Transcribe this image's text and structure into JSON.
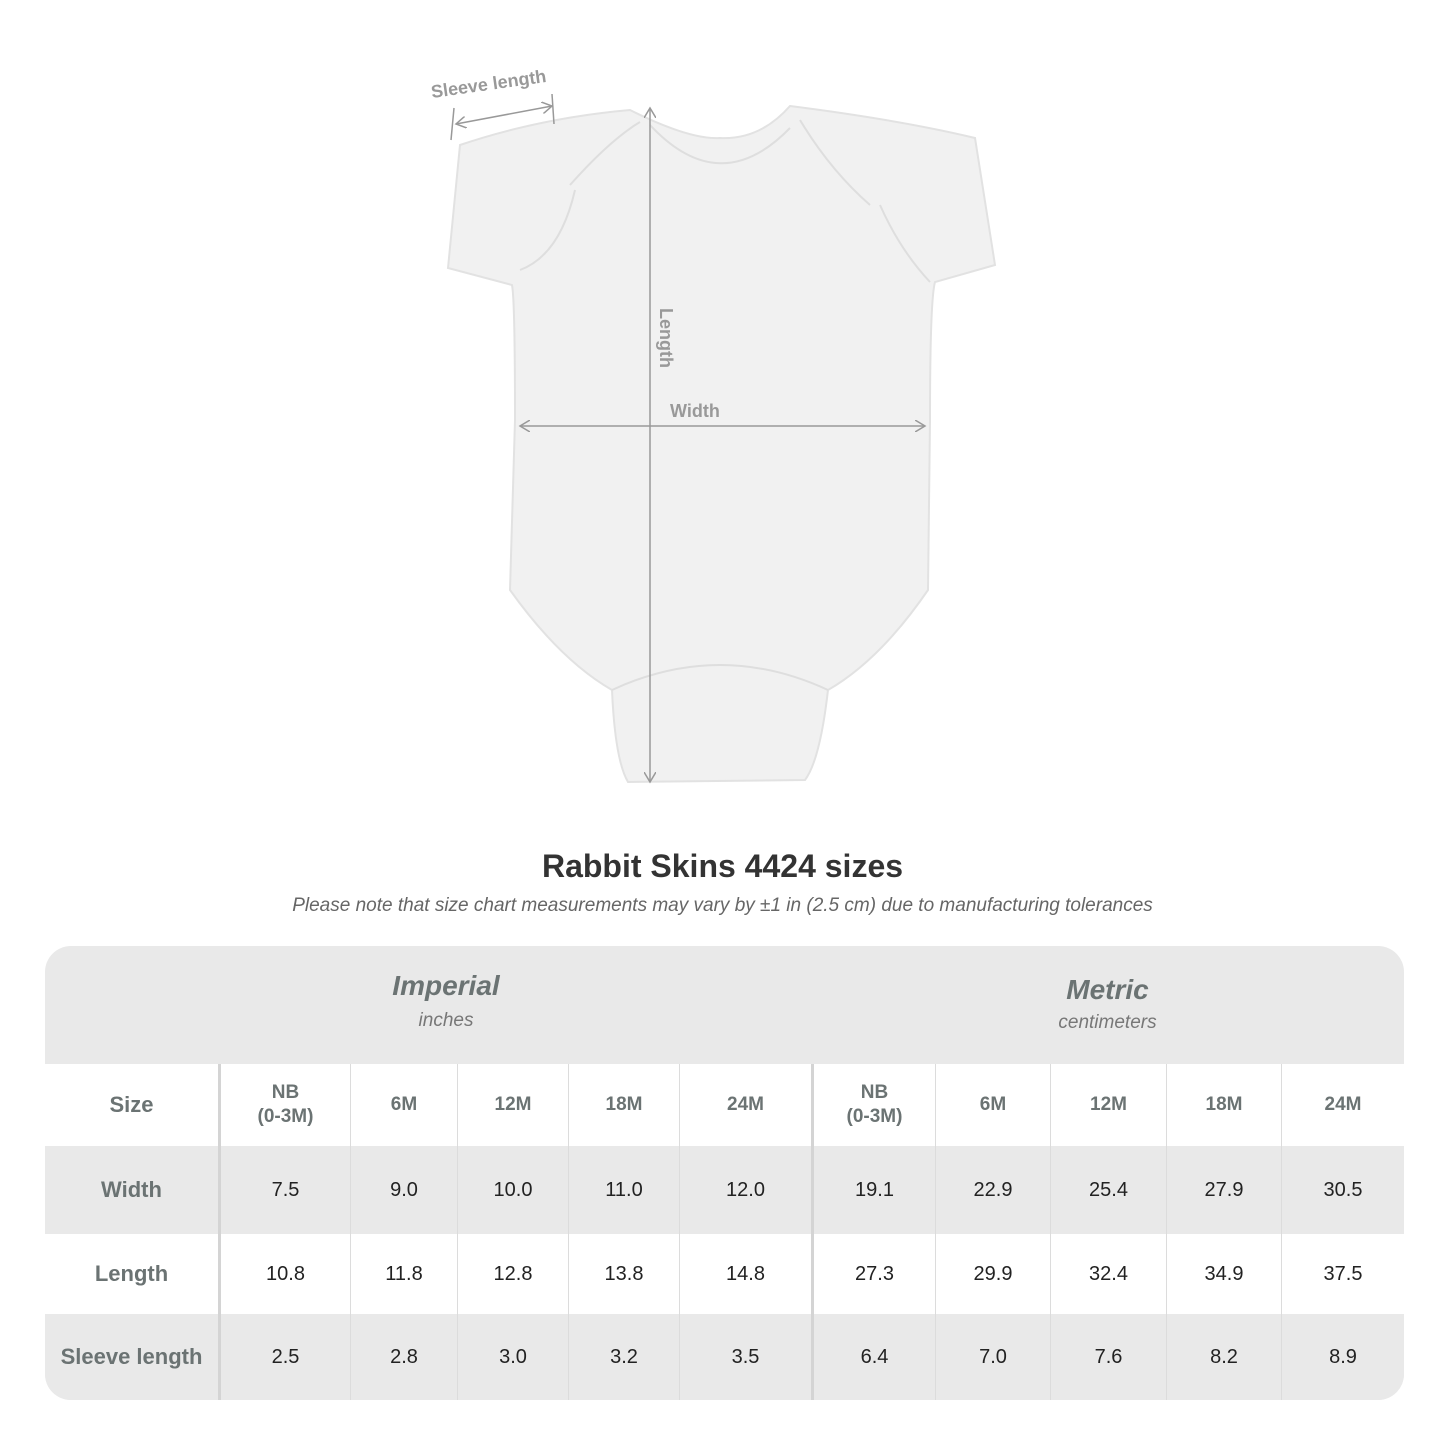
{
  "diagram": {
    "labels": {
      "sleeve": "Sleeve length",
      "length": "Length",
      "width": "Width"
    }
  },
  "title": "Rabbit Skins 4424 sizes",
  "note": "Please note that size chart measurements may vary by ±1 in (2.5 cm) due to manufacturing tolerances",
  "table": {
    "imperial": {
      "name": "Imperial",
      "unit": "inches"
    },
    "metric": {
      "name": "Metric",
      "unit": "centimeters"
    },
    "size_label": "Size",
    "sizes": [
      "NB\n(0-3M)",
      "6M",
      "12M",
      "18M",
      "24M",
      "NB\n(0-3M)",
      "6M",
      "12M",
      "18M",
      "24M"
    ],
    "rows": [
      {
        "label": "Width",
        "values": [
          "7.5",
          "9.0",
          "10.0",
          "11.0",
          "12.0",
          "19.1",
          "22.9",
          "25.4",
          "27.9",
          "30.5"
        ]
      },
      {
        "label": "Length",
        "values": [
          "10.8",
          "11.8",
          "12.8",
          "13.8",
          "14.8",
          "27.3",
          "29.9",
          "32.4",
          "34.9",
          "37.5"
        ]
      },
      {
        "label": "Sleeve length",
        "values": [
          "2.5",
          "2.8",
          "3.0",
          "3.2",
          "3.5",
          "6.4",
          "7.0",
          "7.6",
          "8.2",
          "8.9"
        ]
      }
    ],
    "colors": {
      "shade": "#e9e9e9",
      "header_text": "#6b7373"
    }
  }
}
